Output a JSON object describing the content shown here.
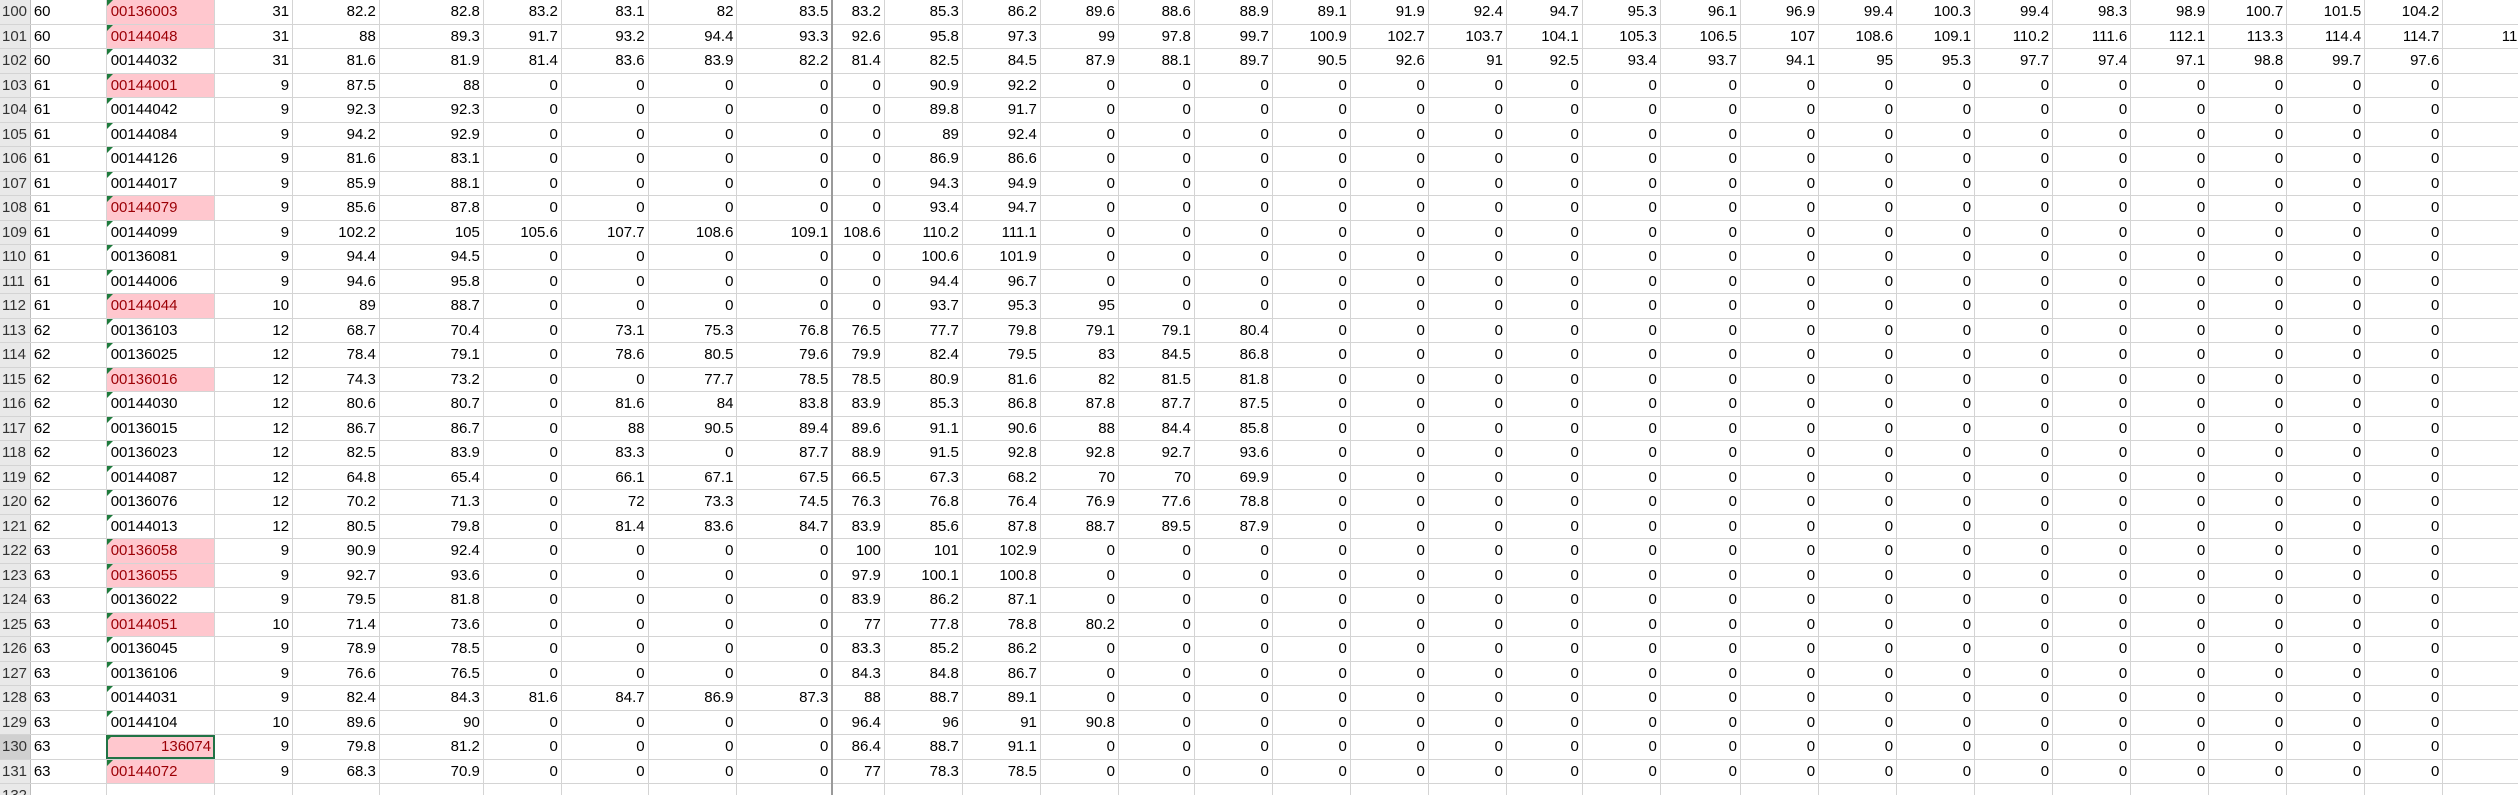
{
  "colors": {
    "highlight_fill": "#ffc7ce",
    "highlight_text": "#9c0006",
    "selection_border": "#217346",
    "row_header_bg": "#e9e9e9"
  },
  "sheet": {
    "selected_cell": "130",
    "rows": [
      {
        "rn": "100",
        "g": "60",
        "code": "00136003",
        "hl": true,
        "v": [
          "31",
          "82.2",
          "82.8",
          "83.2",
          "83.1",
          "82",
          "83.5",
          "83.2",
          "85.3",
          "86.2",
          "89.6",
          "88.6",
          "88.9",
          "89.1",
          "91.9",
          "92.4",
          "94.7",
          "95.3",
          "96.1",
          "96.9",
          "99.4",
          "100.3",
          "99.4",
          "98.3",
          "98.9",
          "100.7",
          "101.5",
          "104.2",
          ""
        ]
      },
      {
        "rn": "101",
        "g": "60",
        "code": "00144048",
        "hl": true,
        "v": [
          "31",
          "88",
          "89.3",
          "91.7",
          "93.2",
          "94.4",
          "93.3",
          "92.6",
          "95.8",
          "97.3",
          "99",
          "97.8",
          "99.7",
          "100.9",
          "102.7",
          "103.7",
          "104.1",
          "105.3",
          "106.5",
          "107",
          "108.6",
          "109.1",
          "110.2",
          "111.6",
          "112.1",
          "113.3",
          "114.4",
          "114.7",
          "11"
        ]
      },
      {
        "rn": "102",
        "g": "60",
        "code": "00144032",
        "hl": false,
        "v": [
          "31",
          "81.6",
          "81.9",
          "81.4",
          "83.6",
          "83.9",
          "82.2",
          "81.4",
          "82.5",
          "84.5",
          "87.9",
          "88.1",
          "89.7",
          "90.5",
          "92.6",
          "91",
          "92.5",
          "93.4",
          "93.7",
          "94.1",
          "95",
          "95.3",
          "97.7",
          "97.4",
          "97.1",
          "98.8",
          "99.7",
          "97.6",
          ""
        ]
      },
      {
        "rn": "103",
        "g": "61",
        "code": "00144001",
        "hl": true,
        "v": [
          "9",
          "87.5",
          "88",
          "0",
          "0",
          "0",
          "0",
          "0",
          "90.9",
          "92.2",
          "0",
          "0",
          "0",
          "0",
          "0",
          "0",
          "0",
          "0",
          "0",
          "0",
          "0",
          "0",
          "0",
          "0",
          "0",
          "0",
          "0",
          "0",
          ""
        ]
      },
      {
        "rn": "104",
        "g": "61",
        "code": "00144042",
        "hl": false,
        "v": [
          "9",
          "92.3",
          "92.3",
          "0",
          "0",
          "0",
          "0",
          "0",
          "89.8",
          "91.7",
          "0",
          "0",
          "0",
          "0",
          "0",
          "0",
          "0",
          "0",
          "0",
          "0",
          "0",
          "0",
          "0",
          "0",
          "0",
          "0",
          "0",
          "0",
          ""
        ]
      },
      {
        "rn": "105",
        "g": "61",
        "code": "00144084",
        "hl": false,
        "v": [
          "9",
          "94.2",
          "92.9",
          "0",
          "0",
          "0",
          "0",
          "0",
          "89",
          "92.4",
          "0",
          "0",
          "0",
          "0",
          "0",
          "0",
          "0",
          "0",
          "0",
          "0",
          "0",
          "0",
          "0",
          "0",
          "0",
          "0",
          "0",
          "0",
          ""
        ]
      },
      {
        "rn": "106",
        "g": "61",
        "code": "00144126",
        "hl": false,
        "v": [
          "9",
          "81.6",
          "83.1",
          "0",
          "0",
          "0",
          "0",
          "0",
          "86.9",
          "86.6",
          "0",
          "0",
          "0",
          "0",
          "0",
          "0",
          "0",
          "0",
          "0",
          "0",
          "0",
          "0",
          "0",
          "0",
          "0",
          "0",
          "0",
          "0",
          ""
        ]
      },
      {
        "rn": "107",
        "g": "61",
        "code": "00144017",
        "hl": false,
        "v": [
          "9",
          "85.9",
          "88.1",
          "0",
          "0",
          "0",
          "0",
          "0",
          "94.3",
          "94.9",
          "0",
          "0",
          "0",
          "0",
          "0",
          "0",
          "0",
          "0",
          "0",
          "0",
          "0",
          "0",
          "0",
          "0",
          "0",
          "0",
          "0",
          "0",
          ""
        ]
      },
      {
        "rn": "108",
        "g": "61",
        "code": "00144079",
        "hl": true,
        "v": [
          "9",
          "85.6",
          "87.8",
          "0",
          "0",
          "0",
          "0",
          "0",
          "93.4",
          "94.7",
          "0",
          "0",
          "0",
          "0",
          "0",
          "0",
          "0",
          "0",
          "0",
          "0",
          "0",
          "0",
          "0",
          "0",
          "0",
          "0",
          "0",
          "0",
          ""
        ]
      },
      {
        "rn": "109",
        "g": "61",
        "code": "00144099",
        "hl": false,
        "v": [
          "9",
          "102.2",
          "105",
          "105.6",
          "107.7",
          "108.6",
          "109.1",
          "108.6",
          "110.2",
          "111.1",
          "0",
          "0",
          "0",
          "0",
          "0",
          "0",
          "0",
          "0",
          "0",
          "0",
          "0",
          "0",
          "0",
          "0",
          "0",
          "0",
          "0",
          "0",
          ""
        ]
      },
      {
        "rn": "110",
        "g": "61",
        "code": "00136081",
        "hl": false,
        "v": [
          "9",
          "94.4",
          "94.5",
          "0",
          "0",
          "0",
          "0",
          "0",
          "100.6",
          "101.9",
          "0",
          "0",
          "0",
          "0",
          "0",
          "0",
          "0",
          "0",
          "0",
          "0",
          "0",
          "0",
          "0",
          "0",
          "0",
          "0",
          "0",
          "0",
          ""
        ]
      },
      {
        "rn": "111",
        "g": "61",
        "code": "00144006",
        "hl": false,
        "v": [
          "9",
          "94.6",
          "95.8",
          "0",
          "0",
          "0",
          "0",
          "0",
          "94.4",
          "96.7",
          "0",
          "0",
          "0",
          "0",
          "0",
          "0",
          "0",
          "0",
          "0",
          "0",
          "0",
          "0",
          "0",
          "0",
          "0",
          "0",
          "0",
          "0",
          ""
        ]
      },
      {
        "rn": "112",
        "g": "61",
        "code": "00144044",
        "hl": true,
        "v": [
          "10",
          "89",
          "88.7",
          "0",
          "0",
          "0",
          "0",
          "0",
          "93.7",
          "95.3",
          "95",
          "0",
          "0",
          "0",
          "0",
          "0",
          "0",
          "0",
          "0",
          "0",
          "0",
          "0",
          "0",
          "0",
          "0",
          "0",
          "0",
          "0",
          ""
        ]
      },
      {
        "rn": "113",
        "g": "62",
        "code": "00136103",
        "hl": false,
        "v": [
          "12",
          "68.7",
          "70.4",
          "0",
          "73.1",
          "75.3",
          "76.8",
          "76.5",
          "77.7",
          "79.8",
          "79.1",
          "79.1",
          "80.4",
          "0",
          "0",
          "0",
          "0",
          "0",
          "0",
          "0",
          "0",
          "0",
          "0",
          "0",
          "0",
          "0",
          "0",
          "0",
          ""
        ]
      },
      {
        "rn": "114",
        "g": "62",
        "code": "00136025",
        "hl": false,
        "v": [
          "12",
          "78.4",
          "79.1",
          "0",
          "78.6",
          "80.5",
          "79.6",
          "79.9",
          "82.4",
          "79.5",
          "83",
          "84.5",
          "86.8",
          "0",
          "0",
          "0",
          "0",
          "0",
          "0",
          "0",
          "0",
          "0",
          "0",
          "0",
          "0",
          "0",
          "0",
          "0",
          ""
        ]
      },
      {
        "rn": "115",
        "g": "62",
        "code": "00136016",
        "hl": true,
        "v": [
          "12",
          "74.3",
          "73.2",
          "0",
          "0",
          "77.7",
          "78.5",
          "78.5",
          "80.9",
          "81.6",
          "82",
          "81.5",
          "81.8",
          "0",
          "0",
          "0",
          "0",
          "0",
          "0",
          "0",
          "0",
          "0",
          "0",
          "0",
          "0",
          "0",
          "0",
          "0",
          ""
        ]
      },
      {
        "rn": "116",
        "g": "62",
        "code": "00144030",
        "hl": false,
        "v": [
          "12",
          "80.6",
          "80.7",
          "0",
          "81.6",
          "84",
          "83.8",
          "83.9",
          "85.3",
          "86.8",
          "87.8",
          "87.7",
          "87.5",
          "0",
          "0",
          "0",
          "0",
          "0",
          "0",
          "0",
          "0",
          "0",
          "0",
          "0",
          "0",
          "0",
          "0",
          "0",
          ""
        ]
      },
      {
        "rn": "117",
        "g": "62",
        "code": "00136015",
        "hl": false,
        "v": [
          "12",
          "86.7",
          "86.7",
          "0",
          "88",
          "90.5",
          "89.4",
          "89.6",
          "91.1",
          "90.6",
          "88",
          "84.4",
          "85.8",
          "0",
          "0",
          "0",
          "0",
          "0",
          "0",
          "0",
          "0",
          "0",
          "0",
          "0",
          "0",
          "0",
          "0",
          "0",
          ""
        ]
      },
      {
        "rn": "118",
        "g": "62",
        "code": "00136023",
        "hl": false,
        "v": [
          "12",
          "82.5",
          "83.9",
          "0",
          "83.3",
          "0",
          "87.7",
          "88.9",
          "91.5",
          "92.8",
          "92.8",
          "92.7",
          "93.6",
          "0",
          "0",
          "0",
          "0",
          "0",
          "0",
          "0",
          "0",
          "0",
          "0",
          "0",
          "0",
          "0",
          "0",
          "0",
          ""
        ]
      },
      {
        "rn": "119",
        "g": "62",
        "code": "00144087",
        "hl": false,
        "v": [
          "12",
          "64.8",
          "65.4",
          "0",
          "66.1",
          "67.1",
          "67.5",
          "66.5",
          "67.3",
          "68.2",
          "70",
          "70",
          "69.9",
          "0",
          "0",
          "0",
          "0",
          "0",
          "0",
          "0",
          "0",
          "0",
          "0",
          "0",
          "0",
          "0",
          "0",
          "0",
          ""
        ]
      },
      {
        "rn": "120",
        "g": "62",
        "code": "00136076",
        "hl": false,
        "v": [
          "12",
          "70.2",
          "71.3",
          "0",
          "72",
          "73.3",
          "74.5",
          "76.3",
          "76.8",
          "76.4",
          "76.9",
          "77.6",
          "78.8",
          "0",
          "0",
          "0",
          "0",
          "0",
          "0",
          "0",
          "0",
          "0",
          "0",
          "0",
          "0",
          "0",
          "0",
          "0",
          ""
        ]
      },
      {
        "rn": "121",
        "g": "62",
        "code": "00144013",
        "hl": false,
        "v": [
          "12",
          "80.5",
          "79.8",
          "0",
          "81.4",
          "83.6",
          "84.7",
          "83.9",
          "85.6",
          "87.8",
          "88.7",
          "89.5",
          "87.9",
          "0",
          "0",
          "0",
          "0",
          "0",
          "0",
          "0",
          "0",
          "0",
          "0",
          "0",
          "0",
          "0",
          "0",
          "0",
          ""
        ]
      },
      {
        "rn": "122",
        "g": "63",
        "code": "00136058",
        "hl": true,
        "v": [
          "9",
          "90.9",
          "92.4",
          "0",
          "0",
          "0",
          "0",
          "100",
          "101",
          "102.9",
          "0",
          "0",
          "0",
          "0",
          "0",
          "0",
          "0",
          "0",
          "0",
          "0",
          "0",
          "0",
          "0",
          "0",
          "0",
          "0",
          "0",
          "0",
          ""
        ]
      },
      {
        "rn": "123",
        "g": "63",
        "code": "00136055",
        "hl": true,
        "v": [
          "9",
          "92.7",
          "93.6",
          "0",
          "0",
          "0",
          "0",
          "97.9",
          "100.1",
          "100.8",
          "0",
          "0",
          "0",
          "0",
          "0",
          "0",
          "0",
          "0",
          "0",
          "0",
          "0",
          "0",
          "0",
          "0",
          "0",
          "0",
          "0",
          "0",
          ""
        ]
      },
      {
        "rn": "124",
        "g": "63",
        "code": "00136022",
        "hl": false,
        "v": [
          "9",
          "79.5",
          "81.8",
          "0",
          "0",
          "0",
          "0",
          "83.9",
          "86.2",
          "87.1",
          "0",
          "0",
          "0",
          "0",
          "0",
          "0",
          "0",
          "0",
          "0",
          "0",
          "0",
          "0",
          "0",
          "0",
          "0",
          "0",
          "0",
          "0",
          ""
        ]
      },
      {
        "rn": "125",
        "g": "63",
        "code": "00144051",
        "hl": true,
        "v": [
          "10",
          "71.4",
          "73.6",
          "0",
          "0",
          "0",
          "0",
          "77",
          "77.8",
          "78.8",
          "80.2",
          "0",
          "0",
          "0",
          "0",
          "0",
          "0",
          "0",
          "0",
          "0",
          "0",
          "0",
          "0",
          "0",
          "0",
          "0",
          "0",
          "0",
          ""
        ]
      },
      {
        "rn": "126",
        "g": "63",
        "code": "00136045",
        "hl": false,
        "v": [
          "9",
          "78.9",
          "78.5",
          "0",
          "0",
          "0",
          "0",
          "83.3",
          "85.2",
          "86.2",
          "0",
          "0",
          "0",
          "0",
          "0",
          "0",
          "0",
          "0",
          "0",
          "0",
          "0",
          "0",
          "0",
          "0",
          "0",
          "0",
          "0",
          "0",
          ""
        ]
      },
      {
        "rn": "127",
        "g": "63",
        "code": "00136106",
        "hl": false,
        "v": [
          "9",
          "76.6",
          "76.5",
          "0",
          "0",
          "0",
          "0",
          "84.3",
          "84.8",
          "86.7",
          "0",
          "0",
          "0",
          "0",
          "0",
          "0",
          "0",
          "0",
          "0",
          "0",
          "0",
          "0",
          "0",
          "0",
          "0",
          "0",
          "0",
          "0",
          ""
        ]
      },
      {
        "rn": "128",
        "g": "63",
        "code": "00144031",
        "hl": false,
        "v": [
          "9",
          "82.4",
          "84.3",
          "81.6",
          "84.7",
          "86.9",
          "87.3",
          "88",
          "88.7",
          "89.1",
          "0",
          "0",
          "0",
          "0",
          "0",
          "0",
          "0",
          "0",
          "0",
          "0",
          "0",
          "0",
          "0",
          "0",
          "0",
          "0",
          "0",
          "0",
          ""
        ]
      },
      {
        "rn": "129",
        "g": "63",
        "code": "00144104",
        "hl": false,
        "v": [
          "10",
          "89.6",
          "90",
          "0",
          "0",
          "0",
          "0",
          "96.4",
          "96",
          "91",
          "90.8",
          "0",
          "0",
          "0",
          "0",
          "0",
          "0",
          "0",
          "0",
          "0",
          "0",
          "0",
          "0",
          "0",
          "0",
          "0",
          "0",
          "0",
          ""
        ]
      },
      {
        "rn": "130",
        "g": "63",
        "code": "136074",
        "hl": true,
        "sel": true,
        "v": [
          "9",
          "79.8",
          "81.2",
          "0",
          "0",
          "0",
          "0",
          "86.4",
          "88.7",
          "91.1",
          "0",
          "0",
          "0",
          "0",
          "0",
          "0",
          "0",
          "0",
          "0",
          "0",
          "0",
          "0",
          "0",
          "0",
          "0",
          "0",
          "0",
          "0",
          ""
        ]
      },
      {
        "rn": "131",
        "g": "63",
        "code": "00144072",
        "hl": true,
        "v": [
          "9",
          "68.3",
          "70.9",
          "0",
          "0",
          "0",
          "0",
          "77",
          "78.3",
          "78.5",
          "0",
          "0",
          "0",
          "0",
          "0",
          "0",
          "0",
          "0",
          "0",
          "0",
          "0",
          "0",
          "0",
          "0",
          "0",
          "0",
          "0",
          "0",
          ""
        ]
      },
      {
        "rn": "132",
        "g": "",
        "code": "",
        "hl": false,
        "v": [
          "",
          "",
          "",
          "",
          "",
          "",
          "",
          "",
          "",
          "",
          "",
          "",
          "",
          "",
          "",
          "",
          "",
          "",
          "",
          "",
          "",
          "",
          "",
          "",
          "",
          "",
          "",
          "",
          ""
        ]
      }
    ]
  }
}
